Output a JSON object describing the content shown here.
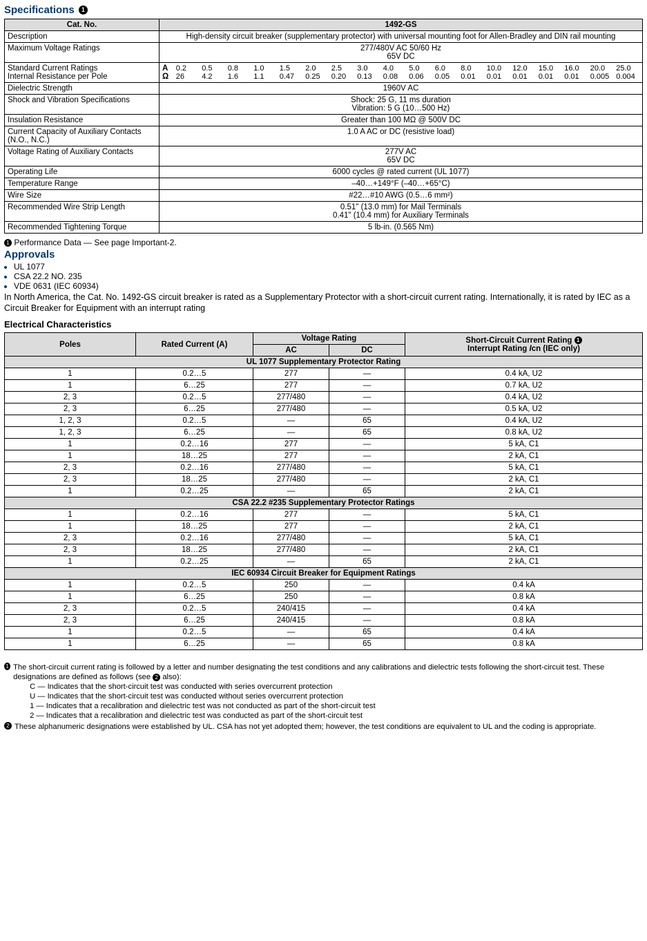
{
  "title": "Specifications",
  "spec_table": {
    "header": {
      "col1": "Cat. No.",
      "col2": "1492-GS"
    },
    "rows": {
      "desc": {
        "label": "Description",
        "value": "High-density circuit breaker (supplementary protector) with universal mounting foot for Allen-Bradley and DIN rail mounting"
      },
      "mvr": {
        "label": "Maximum Voltage Ratings",
        "l1": "277/480V AC 50/60 Hz",
        "l2": "65V DC"
      },
      "scr": {
        "label1": "Standard Current Ratings",
        "label2": "Internal Resistance per Pole",
        "unit1": "A",
        "unit2": "Ω",
        "cols": [
          {
            "a": "0.2",
            "o": "26"
          },
          {
            "a": "0.5",
            "o": "4.2"
          },
          {
            "a": "0.8",
            "o": "1.6"
          },
          {
            "a": "1.0",
            "o": "1.1"
          },
          {
            "a": "1.5",
            "o": "0.47"
          },
          {
            "a": "2.0",
            "o": "0.25"
          },
          {
            "a": "2.5",
            "o": "0.20"
          },
          {
            "a": "3.0",
            "o": "0.13"
          },
          {
            "a": "4.0",
            "o": "0.08"
          },
          {
            "a": "5.0",
            "o": "0.06"
          },
          {
            "a": "6.0",
            "o": "0.05"
          },
          {
            "a": "8.0",
            "o": "0.01"
          },
          {
            "a": "10.0",
            "o": "0.01"
          },
          {
            "a": "12.0",
            "o": "0.01"
          },
          {
            "a": "15.0",
            "o": "0.01"
          },
          {
            "a": "16.0",
            "o": "0.01"
          },
          {
            "a": "20.0",
            "o": "0.005"
          },
          {
            "a": "25.0",
            "o": "0.004"
          }
        ]
      },
      "dielectric": {
        "label": "Dielectric Strength",
        "value": "1960V AC"
      },
      "shock": {
        "label": "Shock and Vibration Specifications",
        "l1": "Shock: 25 G, 11 ms duration",
        "l2": "Vibration: 5 G (10…500 Hz)"
      },
      "insul": {
        "label": "Insulation Resistance",
        "value": "Greater than 100 MΩ @ 500V DC"
      },
      "aux_current": {
        "label": "Current Capacity of Auxiliary Contacts (N.O., N.C.)",
        "value": "1.0 A AC or DC (resistive load)"
      },
      "aux_voltage": {
        "label": "Voltage Rating of Auxiliary Contacts",
        "l1": "277V AC",
        "l2": "65V DC"
      },
      "oplife": {
        "label": "Operating Life",
        "value": "6000 cycles @ rated current (UL 1077)"
      },
      "temp": {
        "label": "Temperature Range",
        "value": "–40…+149°F (–40…+65°C)"
      },
      "wire": {
        "label": "Wire Size",
        "value": "#22…#10 AWG (0.5…6 mm²)"
      },
      "strip": {
        "label": "Recommended Wire Strip Length",
        "l1": "0.51\" (13.0 mm) for Mail Terminals",
        "l2": "0.41\" (10.4 mm) for Auxiliary Terminals"
      },
      "torque": {
        "label": "Recommended Tightening Torque",
        "value": "5 lb-in. (0.565 Nm)"
      }
    }
  },
  "note1": "Performance Data — See page Important-2.",
  "approvals": {
    "title": "Approvals",
    "items": [
      "UL 1077",
      "CSA 22.2 NO. 235",
      "VDE 0631 (IEC 60934)"
    ],
    "body": "In North America, the Cat. No. 1492-GS circuit breaker is rated as a Supplementary Protector with a short-circuit current rating. Internationally, it is rated by IEC as a Circuit Breaker for Equipment with an interrupt rating"
  },
  "elec": {
    "title": "Electrical Characteristics",
    "headers": {
      "poles": "Poles",
      "rated": "Rated Current (A)",
      "vr": "Voltage Rating",
      "ac": "AC",
      "dc": "DC",
      "scr1": "Short-Circuit Current Rating ",
      "scr2": "Interrupt Rating Icn (IEC only)"
    },
    "sections": [
      {
        "title": "UL 1077 Supplementary Protector Rating",
        "rows": [
          [
            "1",
            "0.2…5",
            "277",
            "—",
            "0.4 kA, U2"
          ],
          [
            "1",
            "6…25",
            "277",
            "—",
            "0.7 kA, U2"
          ],
          [
            "2, 3",
            "0.2…5",
            "277/480",
            "—",
            "0.4 kA, U2"
          ],
          [
            "2, 3",
            "6…25",
            "277/480",
            "—",
            "0.5 kA, U2"
          ],
          [
            "1, 2, 3",
            "0.2…5",
            "—",
            "65",
            "0.4 kA, U2"
          ],
          [
            "1, 2, 3",
            "6…25",
            "—",
            "65",
            "0.8 kA, U2"
          ],
          [
            "1",
            "0.2…16",
            "277",
            "—",
            "5 kA, C1"
          ],
          [
            "1",
            "18…25",
            "277",
            "—",
            "2 kA, C1"
          ],
          [
            "2, 3",
            "0.2…16",
            "277/480",
            "—",
            "5 kA, C1"
          ],
          [
            "2, 3",
            "18…25",
            "277/480",
            "—",
            "2 kA, C1"
          ],
          [
            "1",
            "0.2…25",
            "—",
            "65",
            "2 kA, C1"
          ]
        ]
      },
      {
        "title": "CSA 22.2 #235 Supplementary Protector Ratings",
        "rows": [
          [
            "1",
            "0.2…16",
            "277",
            "—",
            "5 kA, C1"
          ],
          [
            "1",
            "18…25",
            "277",
            "—",
            "2 kA, C1"
          ],
          [
            "2, 3",
            "0.2…16",
            "277/480",
            "—",
            "5 kA, C1"
          ],
          [
            "2, 3",
            "18…25",
            "277/480",
            "—",
            "2 kA, C1"
          ],
          [
            "1",
            "0.2…25",
            "—",
            "65",
            "2 kA, C1"
          ]
        ]
      },
      {
        "title": "IEC 60934 Circuit Breaker for Equipment Ratings",
        "rows": [
          [
            "1",
            "0.2…5",
            "250",
            "—",
            "0.4 kA"
          ],
          [
            "1",
            "6…25",
            "250",
            "—",
            "0.8 kA"
          ],
          [
            "2, 3",
            "0.2…5",
            "240/415",
            "—",
            "0.4 kA"
          ],
          [
            "2, 3",
            "6…25",
            "240/415",
            "—",
            "0.8 kA"
          ],
          [
            "1",
            "0.2…5",
            "—",
            "65",
            "0.4 kA"
          ],
          [
            "1",
            "6…25",
            "—",
            "65",
            "0.8 kA"
          ]
        ]
      }
    ]
  },
  "footnotes": {
    "f1": {
      "lead": "The short-circuit current rating is followed by a letter and number designating the test conditions and any calibrations and dielectric tests following the short-circuit test. These designations are defined as follows (see ",
      "tail": " also):",
      "lines": [
        "C — Indicates that the short-circuit test was conducted with series overcurrent protection",
        "U — Indicates that the short-circuit test was conducted without series overcurrent protection",
        "1 — Indicates that a recalibration and dielectric test was not conducted as part of the short-circuit test",
        "2 — Indicates that a recalibration and dielectric test was conducted as part of the short-circuit test"
      ]
    },
    "f2": "These alphanumeric designations were established by UL. CSA has not yet adopted them; however, the test conditions are equivalent to UL and the coding is appropriate."
  }
}
